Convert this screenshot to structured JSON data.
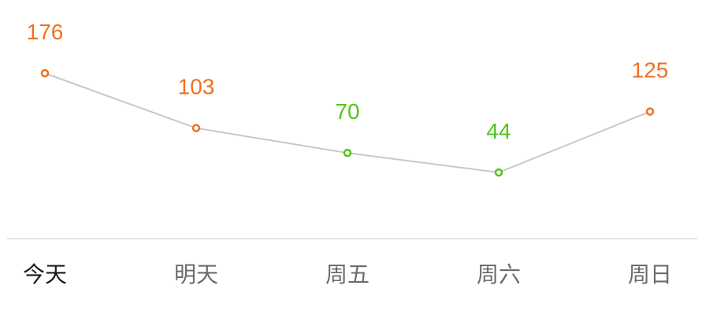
{
  "colors": {
    "high": "#f07020",
    "low": "#52c41a",
    "line": "#c8c8c8",
    "axis": "#e0e0e0",
    "today_text": "#1a1a1a",
    "day_text": "#6b6b6b"
  },
  "chart_data": {
    "type": "line",
    "title": "",
    "xlabel": "",
    "ylabel": "",
    "categories": [
      "今天",
      "明天",
      "周五",
      "周六",
      "周日"
    ],
    "series": [
      {
        "values": [
          176,
          103,
          70,
          44,
          125
        ],
        "point_colors": [
          "high",
          "high",
          "low",
          "low",
          "high"
        ]
      }
    ],
    "grid": false,
    "legend": "none"
  }
}
